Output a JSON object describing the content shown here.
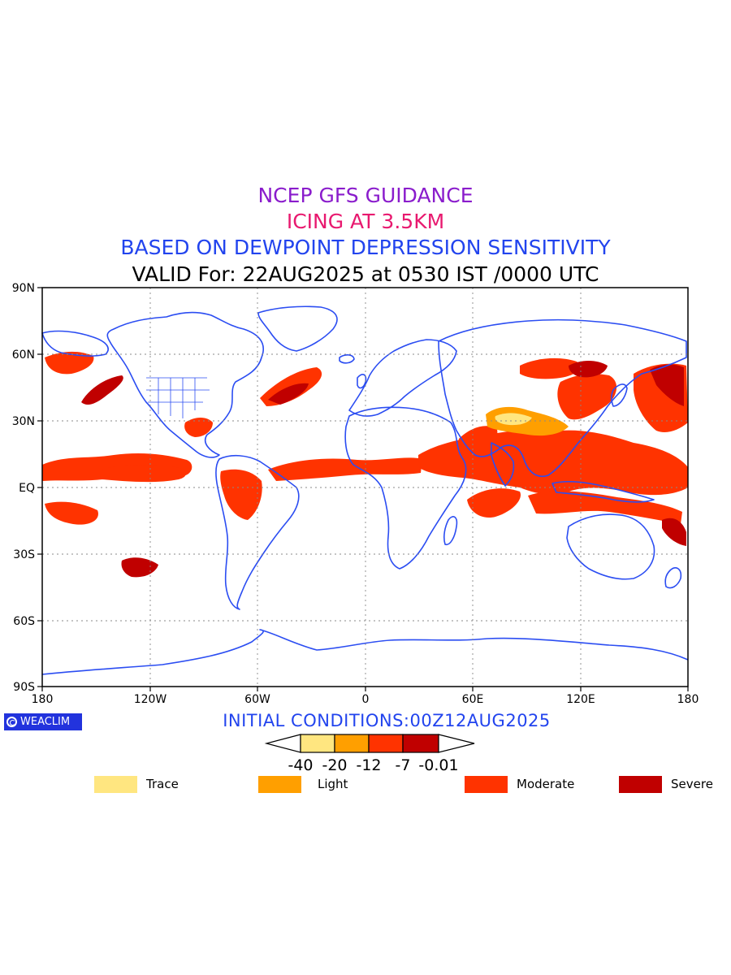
{
  "titles": {
    "line1": "NCEP GFS GUIDANCE",
    "line2": "ICING AT 3.5KM",
    "line3": "BASED ON DEWPOINT DEPRESSION SENSITIVITY",
    "line4": "VALID For: 22AUG2025 at 0530 IST /0000 UTC"
  },
  "colors": {
    "line1": "#8a1ccc",
    "line2": "#e8196f",
    "line3": "#2244ee",
    "line4": "#000000",
    "coast": "#2b4df2",
    "grid": "#888888",
    "trace": "#ffe680",
    "light": "#ff9f00",
    "moderate": "#ff3300",
    "severe": "#c00000"
  },
  "axes": {
    "lat_labels": [
      "90N",
      "60N",
      "30N",
      "EQ",
      "30S",
      "60S",
      "90S"
    ],
    "lon_labels": [
      "180",
      "120W",
      "60W",
      "0",
      "60E",
      "120E",
      "180"
    ]
  },
  "logo": {
    "text": "WEACLIM"
  },
  "initial_conditions": "INITIAL CONDITIONS:00Z12AUG2025",
  "colorbar": {
    "ticks": [
      "-40",
      "-20",
      "-12",
      "-7",
      "-0.01"
    ]
  },
  "legend": [
    {
      "label": "Trace",
      "color": "#ffe680"
    },
    {
      "label": "Light",
      "color": "#ff9f00"
    },
    {
      "label": "Moderate",
      "color": "#ff3300"
    },
    {
      "label": "Severe",
      "color": "#c00000"
    }
  ]
}
